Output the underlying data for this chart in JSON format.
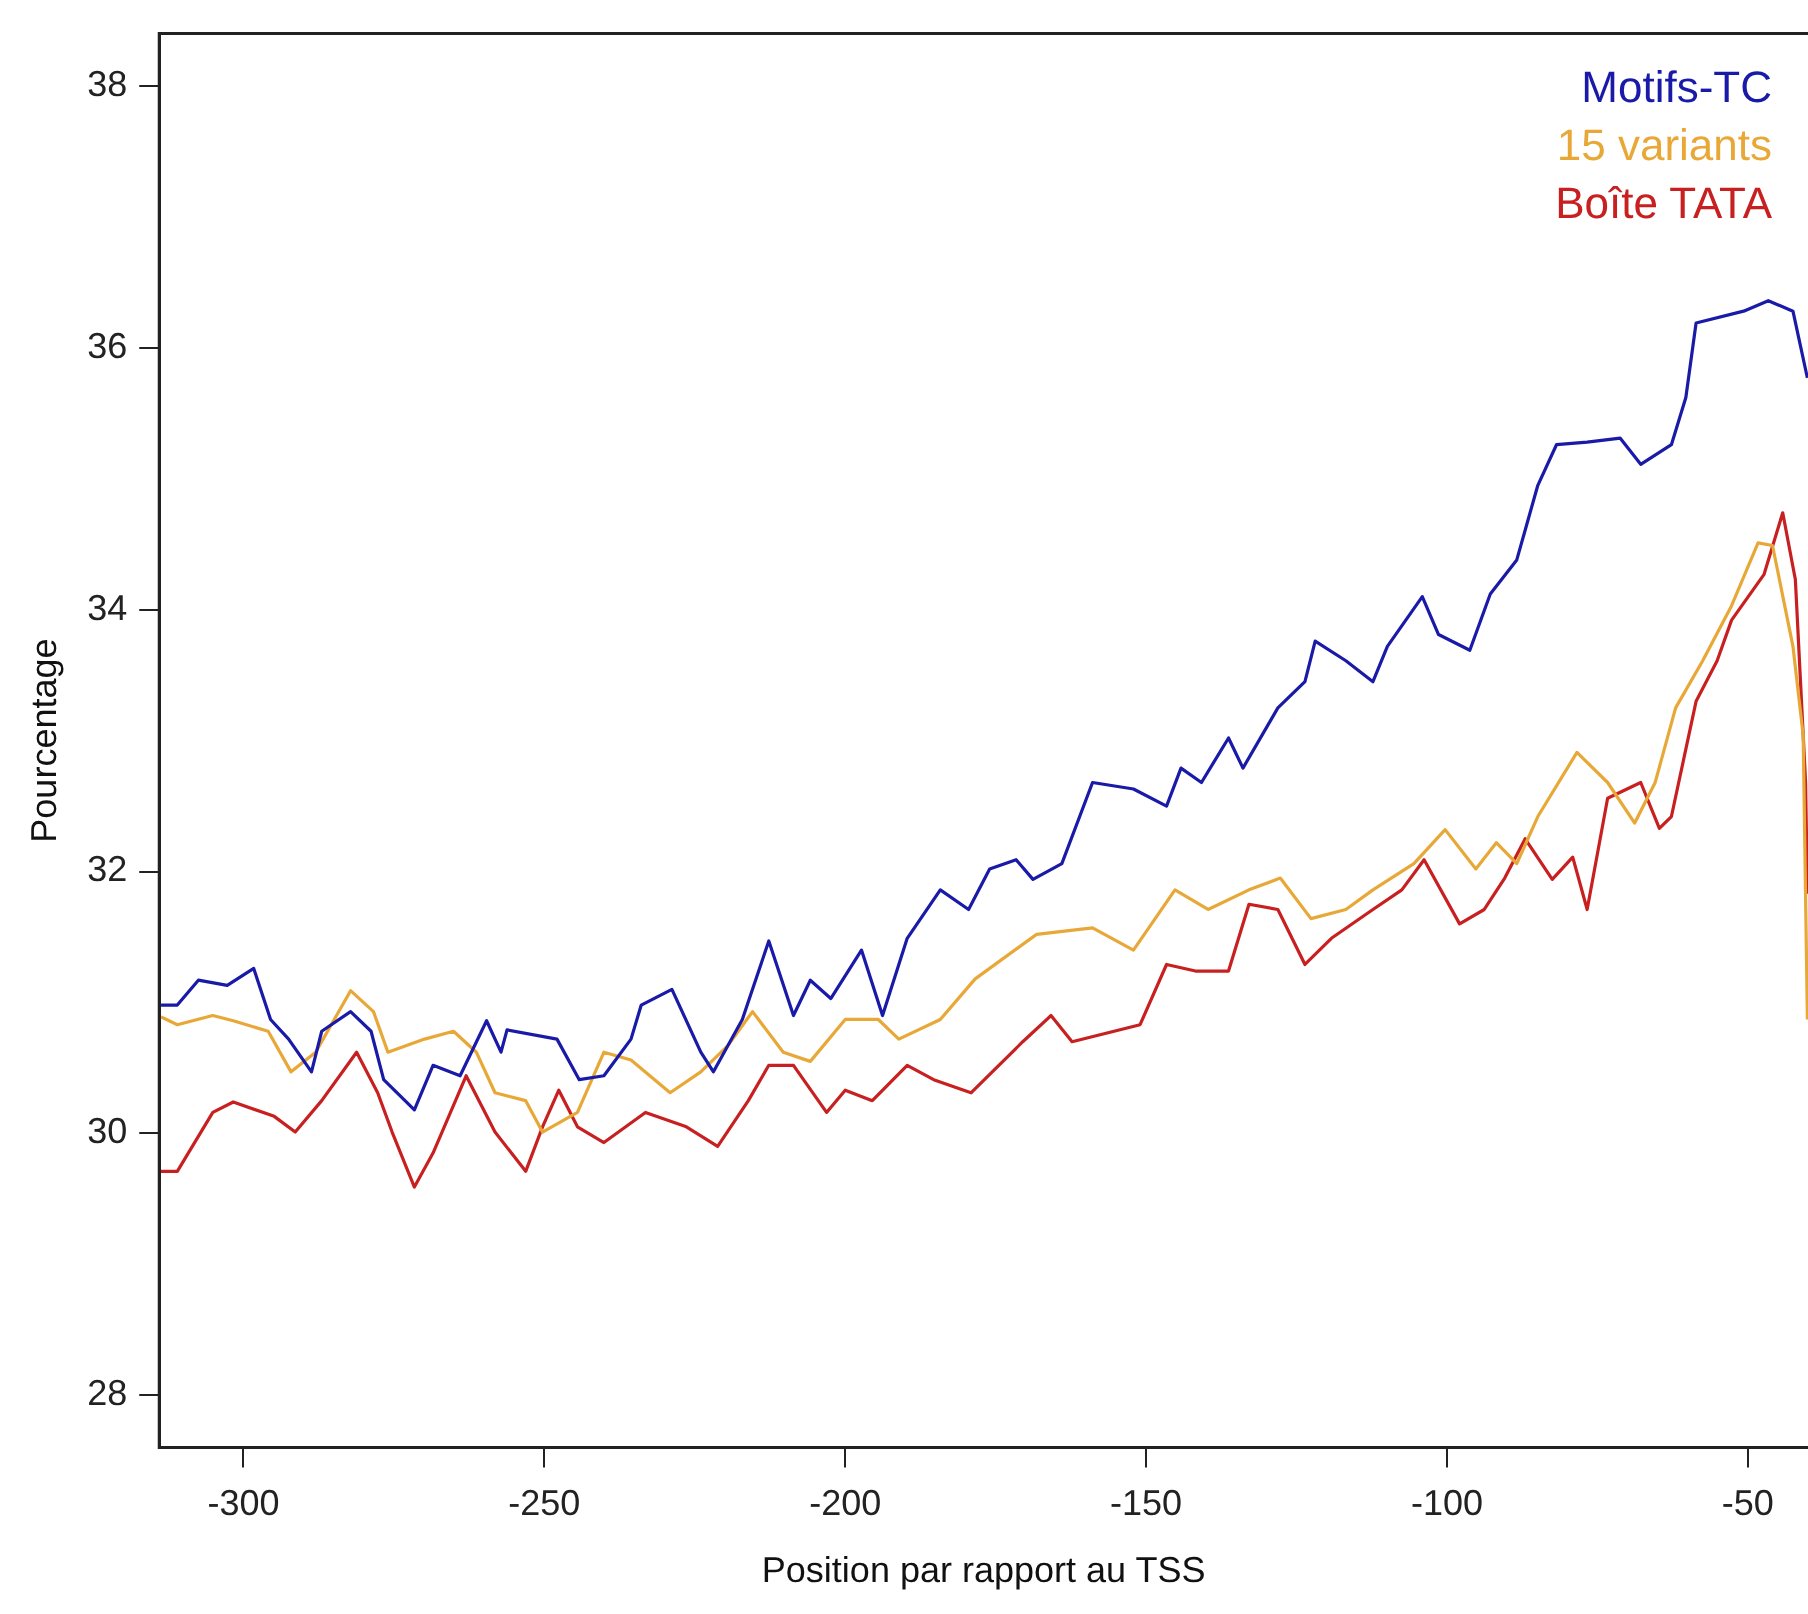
{
  "chart_data": {
    "type": "line",
    "xlabel": "Position par rapport au TSS",
    "ylabel": "Pourcentage",
    "xlim": [
      -314,
      -40
    ],
    "ylim": [
      27.6,
      38.4
    ],
    "xticks": [
      -300,
      -250,
      -200,
      -150,
      -100,
      -50
    ],
    "yticks": [
      28,
      30,
      32,
      34,
      36,
      38
    ],
    "grid": false,
    "legend": "top right",
    "marker": "none",
    "line_style": "solid",
    "series": [
      {
        "name": "Motifs-TC",
        "color": "#1a1aa8",
        "x": [
          -313.7,
          -311.0,
          -307.5,
          -302.7,
          -298.3,
          -295.5,
          -292.5,
          -288.7,
          -287.0,
          -282.2,
          -278.8,
          -276.7,
          -271.6,
          -268.5,
          -264.0,
          -259.6,
          -257.2,
          -256.2,
          -247.9,
          -244.2,
          -240.1,
          -235.6,
          -233.9,
          -228.8,
          -224.0,
          -221.9,
          -217.1,
          -212.7,
          -208.6,
          -205.8,
          -202.4,
          -197.3,
          -193.8,
          -189.7,
          -184.2,
          -179.5,
          -176.0,
          -171.6,
          -168.8,
          -164.0,
          -158.9,
          -152.1,
          -146.6,
          -144.2,
          -140.8,
          -136.3,
          -133.9,
          -128.1,
          -123.6,
          -121.9,
          -116.8,
          -112.3,
          -109.9,
          -104.1,
          -101.4,
          -96.2,
          -92.8,
          -88.4,
          -84.9,
          -81.8,
          -76.7,
          -71.2,
          -67.8,
          -62.7,
          -60.3,
          -58.6,
          -50.7,
          -46.6,
          -42.5,
          -40.1
        ],
        "values": [
          30.98,
          30.98,
          31.17,
          31.13,
          31.26,
          30.87,
          30.72,
          30.47,
          30.78,
          30.93,
          30.78,
          30.41,
          30.18,
          30.52,
          30.44,
          30.86,
          30.62,
          30.79,
          30.72,
          30.41,
          30.44,
          30.72,
          30.98,
          31.1,
          30.62,
          30.47,
          30.87,
          31.47,
          30.9,
          31.17,
          31.03,
          31.4,
          30.9,
          31.49,
          31.86,
          31.71,
          32.02,
          32.09,
          31.94,
          32.06,
          32.68,
          32.63,
          32.5,
          32.79,
          32.68,
          33.02,
          32.79,
          33.25,
          33.45,
          33.76,
          33.61,
          33.45,
          33.72,
          34.1,
          33.81,
          33.69,
          34.12,
          34.38,
          34.95,
          35.26,
          35.28,
          35.31,
          35.11,
          35.26,
          35.62,
          36.19,
          36.28,
          36.36,
          36.28,
          35.77
        ]
      },
      {
        "name": "15 variants",
        "color": "#e8a838",
        "x": [
          -313.7,
          -311.0,
          -305.1,
          -301.7,
          -295.9,
          -292.1,
          -288.0,
          -282.2,
          -278.4,
          -276.0,
          -269.9,
          -265.1,
          -261.3,
          -258.2,
          -253.1,
          -250.3,
          -244.5,
          -240.1,
          -235.6,
          -229.1,
          -224.0,
          -219.5,
          -215.4,
          -210.3,
          -205.8,
          -200.0,
          -194.5,
          -191.1,
          -184.2,
          -178.4,
          -168.2,
          -158.9,
          -152.1,
          -145.2,
          -139.7,
          -132.9,
          -127.7,
          -122.6,
          -116.8,
          -112.3,
          -105.5,
          -100.3,
          -95.2,
          -91.8,
          -88.4,
          -84.9,
          -78.4,
          -73.3,
          -68.8,
          -65.4,
          -62.0,
          -57.5,
          -52.7,
          -48.3,
          -45.9,
          -42.5,
          -40.8,
          -40.1
        ],
        "values": [
          30.89,
          30.83,
          30.9,
          30.86,
          30.78,
          30.47,
          30.62,
          31.09,
          30.93,
          30.62,
          30.72,
          30.78,
          30.62,
          30.31,
          30.25,
          30.01,
          30.16,
          30.62,
          30.56,
          30.31,
          30.47,
          30.67,
          30.93,
          30.62,
          30.55,
          30.87,
          30.87,
          30.72,
          30.87,
          31.18,
          31.52,
          31.57,
          31.4,
          31.86,
          31.71,
          31.86,
          31.95,
          31.64,
          31.71,
          31.86,
          32.06,
          32.32,
          32.02,
          32.22,
          32.06,
          32.42,
          32.91,
          32.68,
          32.37,
          32.68,
          33.25,
          33.61,
          34.03,
          34.51,
          34.49,
          33.72,
          33.04,
          30.87
        ]
      },
      {
        "name": "Boîte TATA",
        "color": "#c82020",
        "x": [
          -313.7,
          -311.0,
          -305.1,
          -301.7,
          -294.9,
          -291.4,
          -287.0,
          -281.2,
          -277.7,
          -275.3,
          -271.6,
          -268.5,
          -263.0,
          -258.2,
          -253.1,
          -250.3,
          -247.6,
          -244.5,
          -240.1,
          -233.2,
          -226.4,
          -221.2,
          -216.1,
          -212.7,
          -208.6,
          -203.1,
          -200.0,
          -195.5,
          -189.7,
          -185.3,
          -179.1,
          -170.5,
          -165.8,
          -162.3,
          -151.0,
          -146.6,
          -141.8,
          -136.3,
          -132.9,
          -128.1,
          -123.6,
          -119.2,
          -112.3,
          -107.5,
          -103.8,
          -97.9,
          -93.8,
          -90.4,
          -87.0,
          -82.5,
          -79.1,
          -76.7,
          -73.3,
          -67.8,
          -64.7,
          -62.7,
          -58.6,
          -55.1,
          -52.7,
          -47.3,
          -44.2,
          -42.1,
          -40.4,
          -40.1
        ],
        "values": [
          29.71,
          29.71,
          30.16,
          30.24,
          30.13,
          30.01,
          30.25,
          30.62,
          30.31,
          30.01,
          29.59,
          29.85,
          30.44,
          30.01,
          29.71,
          30.05,
          30.33,
          30.05,
          29.93,
          30.16,
          30.05,
          29.9,
          30.25,
          30.52,
          30.52,
          30.16,
          30.33,
          30.25,
          30.52,
          30.41,
          30.31,
          30.7,
          30.9,
          30.7,
          30.83,
          31.29,
          31.24,
          31.24,
          31.75,
          31.71,
          31.29,
          31.49,
          31.71,
          31.86,
          32.09,
          31.6,
          31.71,
          31.95,
          32.25,
          31.94,
          32.11,
          31.71,
          32.56,
          32.68,
          32.33,
          32.42,
          33.3,
          33.61,
          33.92,
          34.27,
          34.74,
          34.23,
          32.68,
          31.83
        ]
      }
    ]
  }
}
